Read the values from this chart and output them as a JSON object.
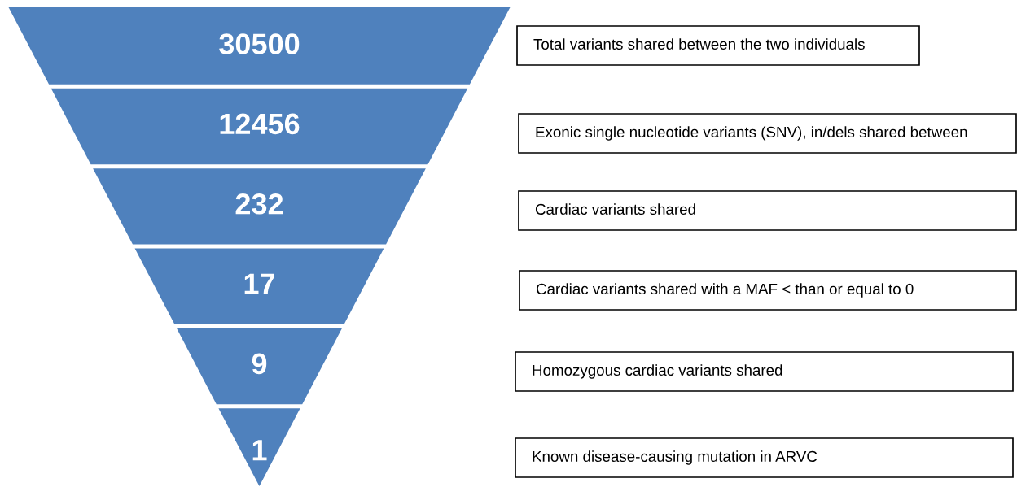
{
  "chart_data": {
    "type": "other",
    "categories": [
      "Total variants shared between the two individuals",
      "Exonic single nucleotide variants (SNV), in/dels shared between",
      "Cardiac variants shared",
      "Cardiac variants shared with a MAF < than or equal to 0",
      "Homozygous cardiac variants shared",
      "Known disease-causing mutation in ARVC"
    ],
    "values": [
      30500,
      12456,
      232,
      17,
      9,
      1
    ],
    "color": "#4f81bd",
    "data_labels": true
  }
}
